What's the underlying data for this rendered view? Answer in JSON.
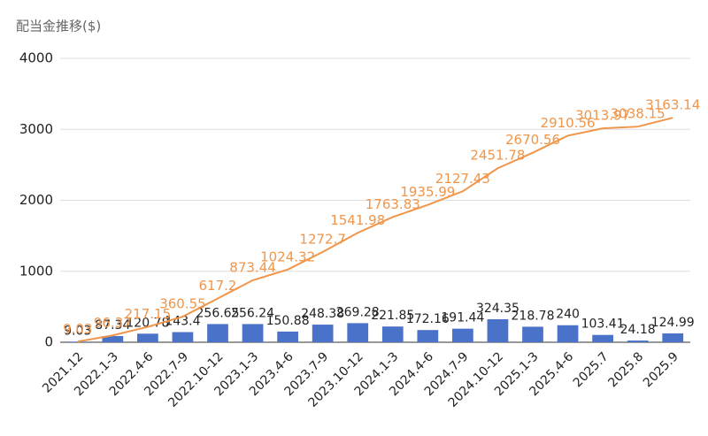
{
  "chart_data": {
    "type": "bar-line",
    "title": "配当金推移($)",
    "categories": [
      "2021.12",
      "2022.1-3",
      "2022.4-6",
      "2022.7-9",
      "2022.10-12",
      "2023.1-3",
      "2023.4-6",
      "2023.7-9",
      "2023.10-12",
      "2024.1-3",
      "2024.4-6",
      "2024.7-9",
      "2024.10-12",
      "2025.1-3",
      "2025.4-6",
      "2025.7",
      "2025.8",
      "2025.9"
    ],
    "series": [
      {
        "type": "bar",
        "color": "#4a72c8",
        "values": [
          9.03,
          87.34,
          120.78,
          143.4,
          256.65,
          256.24,
          150.88,
          248.38,
          269.28,
          221.85,
          172.16,
          191.44,
          324.35,
          218.78,
          240,
          103.41,
          24.18,
          124.99
        ]
      },
      {
        "type": "line",
        "color": "#f0954a",
        "values": [
          9.03,
          96.37,
          217.15,
          360.55,
          617.2,
          873.44,
          1024.32,
          1272.7,
          1541.98,
          1763.83,
          1935.99,
          2127.43,
          2451.78,
          2670.56,
          2910.56,
          3013.97,
          3038.15,
          3163.14
        ]
      }
    ],
    "ylim": [
      0,
      4000
    ],
    "yticks": [
      0,
      1000,
      2000,
      3000,
      4000
    ],
    "grid": true
  }
}
